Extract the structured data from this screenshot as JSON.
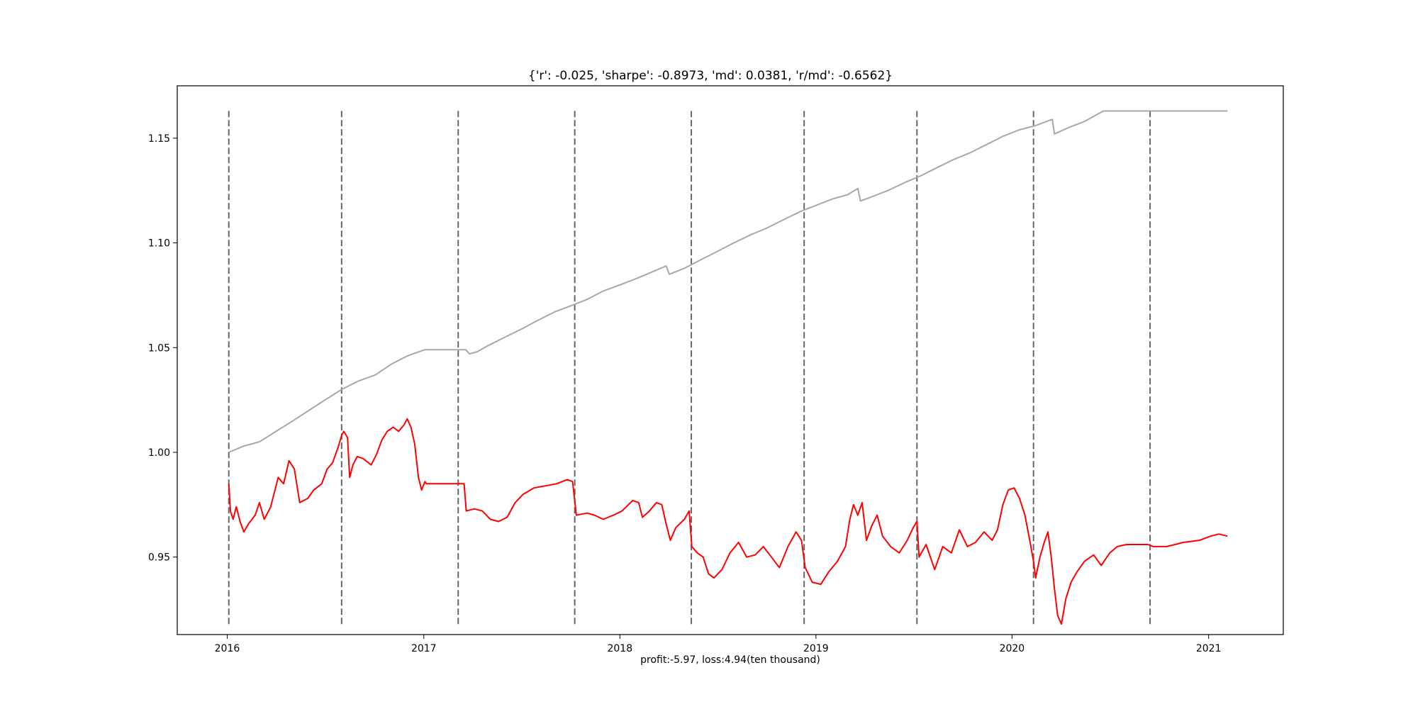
{
  "chart_data": {
    "type": "line",
    "title": "{'r': -0.025, 'sharpe': -0.8973, 'md': 0.0381, 'r/md': -0.6562}",
    "xlabel": "profit:-5.97, loss:4.94(ten thousand)",
    "ylabel": "",
    "xlim": [
      "2015-09-30",
      "2021-05-20"
    ],
    "ylim": [
      0.913,
      1.175
    ],
    "x_ticks": [
      "2016",
      "2017",
      "2018",
      "2019",
      "2020",
      "2021"
    ],
    "y_ticks": [
      "0.95",
      "1.00",
      "1.05",
      "1.10",
      "1.15"
    ],
    "grid": false,
    "legend": "none",
    "vlines": {
      "style": "dashed",
      "color": "#666666",
      "y_range": [
        0.918,
        1.163
      ],
      "dates": [
        "2016-01-04",
        "2016-08-01",
        "2017-03-06",
        "2017-10-09",
        "2018-05-14",
        "2018-12-10",
        "2019-07-08",
        "2020-02-10",
        "2020-09-14"
      ]
    },
    "series": [
      {
        "color": "#a8a8a8",
        "points": [
          [
            "2016-01-04",
            1.0
          ],
          [
            "2016-02-01",
            1.003
          ],
          [
            "2016-03-01",
            1.005
          ],
          [
            "2016-04-01",
            1.01
          ],
          [
            "2016-05-02",
            1.015
          ],
          [
            "2016-06-01",
            1.02
          ],
          [
            "2016-07-01",
            1.025
          ],
          [
            "2016-08-01",
            1.03
          ],
          [
            "2016-09-01",
            1.034
          ],
          [
            "2016-10-03",
            1.037
          ],
          [
            "2016-11-01",
            1.042
          ],
          [
            "2016-12-01",
            1.046
          ],
          [
            "2017-01-03",
            1.049
          ],
          [
            "2017-02-01",
            1.049
          ],
          [
            "2017-03-06",
            1.049
          ],
          [
            "2017-03-20",
            1.049
          ],
          [
            "2017-03-27",
            1.047
          ],
          [
            "2017-04-10",
            1.048
          ],
          [
            "2017-05-01",
            1.051
          ],
          [
            "2017-06-01",
            1.055
          ],
          [
            "2017-07-03",
            1.059
          ],
          [
            "2017-08-01",
            1.063
          ],
          [
            "2017-09-01",
            1.067
          ],
          [
            "2017-10-02",
            1.07
          ],
          [
            "2017-11-01",
            1.073
          ],
          [
            "2017-12-01",
            1.077
          ],
          [
            "2018-01-02",
            1.08
          ],
          [
            "2018-02-01",
            1.083
          ],
          [
            "2018-03-01",
            1.086
          ],
          [
            "2018-03-28",
            1.089
          ],
          [
            "2018-04-03",
            1.085
          ],
          [
            "2018-05-02",
            1.088
          ],
          [
            "2018-06-01",
            1.092
          ],
          [
            "2018-07-02",
            1.096
          ],
          [
            "2018-08-01",
            1.1
          ],
          [
            "2018-09-03",
            1.104
          ],
          [
            "2018-10-01",
            1.107
          ],
          [
            "2018-11-01",
            1.111
          ],
          [
            "2018-12-03",
            1.115
          ],
          [
            "2019-01-02",
            1.118
          ],
          [
            "2019-02-01",
            1.121
          ],
          [
            "2019-03-01",
            1.123
          ],
          [
            "2019-03-20",
            1.126
          ],
          [
            "2019-03-25",
            1.12
          ],
          [
            "2019-04-15",
            1.122
          ],
          [
            "2019-05-15",
            1.125
          ],
          [
            "2019-06-17",
            1.129
          ],
          [
            "2019-07-15",
            1.132
          ],
          [
            "2019-08-15",
            1.136
          ],
          [
            "2019-09-16",
            1.14
          ],
          [
            "2019-10-15",
            1.143
          ],
          [
            "2019-11-15",
            1.147
          ],
          [
            "2019-12-16",
            1.151
          ],
          [
            "2020-01-15",
            1.154
          ],
          [
            "2020-02-14",
            1.156
          ],
          [
            "2020-03-16",
            1.159
          ],
          [
            "2020-03-20",
            1.152
          ],
          [
            "2020-04-15",
            1.155
          ],
          [
            "2020-05-15",
            1.158
          ],
          [
            "2020-06-19",
            1.163
          ],
          [
            "2020-09-14",
            1.163
          ],
          [
            "2021-02-05",
            1.163
          ]
        ]
      },
      {
        "color": "#ff0000",
        "points": [
          [
            "2016-01-04",
            0.985
          ],
          [
            "2016-01-07",
            0.972
          ],
          [
            "2016-01-12",
            0.968
          ],
          [
            "2016-01-18",
            0.974
          ],
          [
            "2016-01-25",
            0.967
          ],
          [
            "2016-02-01",
            0.962
          ],
          [
            "2016-02-10",
            0.966
          ],
          [
            "2016-02-22",
            0.97
          ],
          [
            "2016-03-01",
            0.976
          ],
          [
            "2016-03-10",
            0.968
          ],
          [
            "2016-03-22",
            0.974
          ],
          [
            "2016-04-05",
            0.988
          ],
          [
            "2016-04-15",
            0.985
          ],
          [
            "2016-04-25",
            0.996
          ],
          [
            "2016-05-05",
            0.992
          ],
          [
            "2016-05-15",
            0.976
          ],
          [
            "2016-05-30",
            0.978
          ],
          [
            "2016-06-10",
            0.982
          ],
          [
            "2016-06-25",
            0.985
          ],
          [
            "2016-07-05",
            0.992
          ],
          [
            "2016-07-15",
            0.995
          ],
          [
            "2016-07-25",
            1.002
          ],
          [
            "2016-08-01",
            1.008
          ],
          [
            "2016-08-05",
            1.01
          ],
          [
            "2016-08-12",
            1.007
          ],
          [
            "2016-08-16",
            0.988
          ],
          [
            "2016-08-22",
            0.994
          ],
          [
            "2016-08-30",
            0.998
          ],
          [
            "2016-09-10",
            0.997
          ],
          [
            "2016-09-25",
            0.994
          ],
          [
            "2016-10-05",
            0.999
          ],
          [
            "2016-10-15",
            1.006
          ],
          [
            "2016-10-25",
            1.01
          ],
          [
            "2016-11-05",
            1.012
          ],
          [
            "2016-11-15",
            1.01
          ],
          [
            "2016-11-25",
            1.013
          ],
          [
            "2016-12-01",
            1.016
          ],
          [
            "2016-12-08",
            1.012
          ],
          [
            "2016-12-15",
            1.004
          ],
          [
            "2016-12-22",
            0.988
          ],
          [
            "2016-12-28",
            0.982
          ],
          [
            "2017-01-03",
            0.986
          ],
          [
            "2017-01-06",
            0.985
          ],
          [
            "2017-02-01",
            0.985
          ],
          [
            "2017-03-06",
            0.985
          ],
          [
            "2017-03-17",
            0.985
          ],
          [
            "2017-03-21",
            0.972
          ],
          [
            "2017-04-05",
            0.973
          ],
          [
            "2017-04-20",
            0.972
          ],
          [
            "2017-05-05",
            0.968
          ],
          [
            "2017-05-20",
            0.967
          ],
          [
            "2017-06-05",
            0.969
          ],
          [
            "2017-06-20",
            0.976
          ],
          [
            "2017-07-05",
            0.98
          ],
          [
            "2017-07-25",
            0.983
          ],
          [
            "2017-08-15",
            0.984
          ],
          [
            "2017-09-05",
            0.985
          ],
          [
            "2017-09-25",
            0.987
          ],
          [
            "2017-10-05",
            0.986
          ],
          [
            "2017-10-12",
            0.97
          ],
          [
            "2017-11-01",
            0.971
          ],
          [
            "2017-11-15",
            0.97
          ],
          [
            "2017-12-01",
            0.968
          ],
          [
            "2017-12-20",
            0.97
          ],
          [
            "2018-01-05",
            0.972
          ],
          [
            "2018-01-25",
            0.977
          ],
          [
            "2018-02-05",
            0.976
          ],
          [
            "2018-02-12",
            0.969
          ],
          [
            "2018-02-25",
            0.972
          ],
          [
            "2018-03-10",
            0.976
          ],
          [
            "2018-03-20",
            0.975
          ],
          [
            "2018-03-27",
            0.967
          ],
          [
            "2018-04-05",
            0.958
          ],
          [
            "2018-04-15",
            0.964
          ],
          [
            "2018-05-01",
            0.968
          ],
          [
            "2018-05-10",
            0.972
          ],
          [
            "2018-05-15",
            0.955
          ],
          [
            "2018-05-25",
            0.952
          ],
          [
            "2018-06-05",
            0.95
          ],
          [
            "2018-06-15",
            0.942
          ],
          [
            "2018-06-25",
            0.94
          ],
          [
            "2018-07-10",
            0.944
          ],
          [
            "2018-07-25",
            0.952
          ],
          [
            "2018-08-10",
            0.957
          ],
          [
            "2018-08-25",
            0.95
          ],
          [
            "2018-09-10",
            0.951
          ],
          [
            "2018-09-25",
            0.955
          ],
          [
            "2018-10-10",
            0.95
          ],
          [
            "2018-10-25",
            0.945
          ],
          [
            "2018-11-10",
            0.955
          ],
          [
            "2018-11-25",
            0.962
          ],
          [
            "2018-12-05",
            0.958
          ],
          [
            "2018-12-12",
            0.945
          ],
          [
            "2018-12-25",
            0.938
          ],
          [
            "2019-01-10",
            0.937
          ],
          [
            "2019-01-25",
            0.943
          ],
          [
            "2019-02-10",
            0.948
          ],
          [
            "2019-02-25",
            0.955
          ],
          [
            "2019-03-05",
            0.968
          ],
          [
            "2019-03-12",
            0.975
          ],
          [
            "2019-03-20",
            0.97
          ],
          [
            "2019-03-28",
            0.976
          ],
          [
            "2019-04-05",
            0.958
          ],
          [
            "2019-04-15",
            0.965
          ],
          [
            "2019-04-25",
            0.97
          ],
          [
            "2019-05-05",
            0.96
          ],
          [
            "2019-05-20",
            0.955
          ],
          [
            "2019-06-05",
            0.952
          ],
          [
            "2019-06-20",
            0.958
          ],
          [
            "2019-07-01",
            0.964
          ],
          [
            "2019-07-08",
            0.967
          ],
          [
            "2019-07-12",
            0.95
          ],
          [
            "2019-07-25",
            0.956
          ],
          [
            "2019-08-10",
            0.944
          ],
          [
            "2019-08-25",
            0.955
          ],
          [
            "2019-09-10",
            0.952
          ],
          [
            "2019-09-25",
            0.963
          ],
          [
            "2019-10-10",
            0.955
          ],
          [
            "2019-10-25",
            0.957
          ],
          [
            "2019-11-10",
            0.962
          ],
          [
            "2019-11-25",
            0.958
          ],
          [
            "2019-12-05",
            0.963
          ],
          [
            "2019-12-15",
            0.975
          ],
          [
            "2019-12-25",
            0.982
          ],
          [
            "2020-01-05",
            0.983
          ],
          [
            "2020-01-15",
            0.978
          ],
          [
            "2020-01-25",
            0.97
          ],
          [
            "2020-02-03",
            0.958
          ],
          [
            "2020-02-10",
            0.948
          ],
          [
            "2020-02-14",
            0.94
          ],
          [
            "2020-02-22",
            0.95
          ],
          [
            "2020-03-01",
            0.957
          ],
          [
            "2020-03-08",
            0.962
          ],
          [
            "2020-03-14",
            0.95
          ],
          [
            "2020-03-20",
            0.935
          ],
          [
            "2020-03-26",
            0.922
          ],
          [
            "2020-04-02",
            0.918
          ],
          [
            "2020-04-10",
            0.93
          ],
          [
            "2020-04-20",
            0.938
          ],
          [
            "2020-05-01",
            0.943
          ],
          [
            "2020-05-15",
            0.948
          ],
          [
            "2020-06-01",
            0.951
          ],
          [
            "2020-06-15",
            0.946
          ],
          [
            "2020-07-01",
            0.952
          ],
          [
            "2020-07-15",
            0.955
          ],
          [
            "2020-08-01",
            0.956
          ],
          [
            "2020-08-20",
            0.956
          ],
          [
            "2020-09-10",
            0.956
          ],
          [
            "2020-09-20",
            0.955
          ],
          [
            "2020-10-15",
            0.955
          ],
          [
            "2020-11-15",
            0.957
          ],
          [
            "2020-12-15",
            0.958
          ],
          [
            "2021-01-05",
            0.96
          ],
          [
            "2021-01-20",
            0.961
          ],
          [
            "2021-02-05",
            0.96
          ]
        ]
      }
    ]
  }
}
